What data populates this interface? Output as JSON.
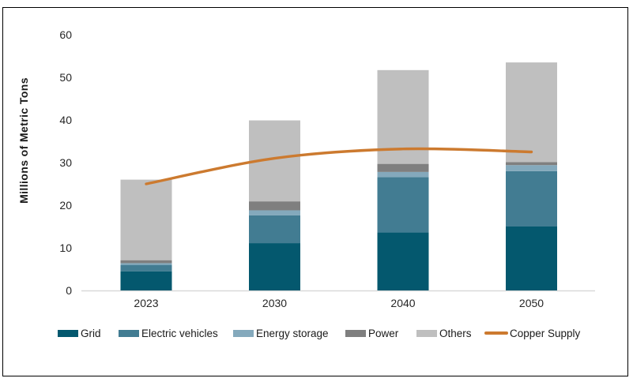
{
  "chart_data": {
    "type": "bar",
    "stacked": true,
    "title": "",
    "xlabel": "",
    "ylabel": "Millions of Metric Tons",
    "categories": [
      "2023",
      "2030",
      "2040",
      "2050"
    ],
    "series": [
      {
        "name": "Grid",
        "color": "#04586E",
        "values": [
          4.5,
          11.1,
          13.6,
          15.0
        ]
      },
      {
        "name": "Electric vehicles",
        "color": "#427C92",
        "values": [
          1.5,
          6.5,
          13.0,
          13.0
        ]
      },
      {
        "name": "Energy storage",
        "color": "#84A9BC",
        "values": [
          0.4,
          1.2,
          1.2,
          1.4
        ]
      },
      {
        "name": "Power",
        "color": "#7F7F7F",
        "values": [
          0.7,
          2.1,
          1.9,
          0.7
        ]
      },
      {
        "name": "Others",
        "color": "#BFBFBF",
        "values": [
          18.9,
          19.0,
          22.0,
          23.4
        ]
      }
    ],
    "line_series": {
      "name": "Copper Supply",
      "color": "#CC7A2F",
      "values": [
        25.0,
        31.0,
        33.2,
        32.5
      ]
    },
    "bar_totals": [
      26.0,
      39.9,
      51.7,
      53.5
    ],
    "ylim": [
      0,
      60
    ],
    "yticks": [
      0,
      10,
      20,
      30,
      40,
      50,
      60
    ],
    "grid": false,
    "legend_position": "bottom",
    "colors": {
      "axis_line": "#D9D9D9",
      "text": "#262626",
      "background": "#FFFFFF",
      "frame_border": "#000000"
    }
  }
}
